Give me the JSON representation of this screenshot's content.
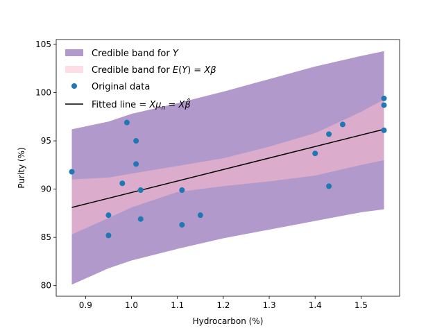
{
  "chart_data": {
    "type": "scatter",
    "xlabel": "Hydrocarbon (%)",
    "ylabel": "Purity (%)",
    "xlim": [
      0.836,
      1.584
    ],
    "ylim": [
      78.9,
      105.5
    ],
    "xticks": [
      0.9,
      1.0,
      1.1,
      1.2,
      1.3,
      1.4,
      1.5
    ],
    "xtick_labels": [
      "0.9",
      "1.0",
      "1.1",
      "1.2",
      "1.3",
      "1.4",
      "1.5"
    ],
    "yticks": [
      80,
      85,
      90,
      95,
      100,
      105
    ],
    "ytick_labels": [
      "80",
      "85",
      "90",
      "95",
      "100",
      "105"
    ],
    "grid": false,
    "legend_position": "top-left",
    "legend": [
      {
        "key": "band_y",
        "label": "Credible band for Y"
      },
      {
        "key": "band_mean",
        "label": "Credible band for E(Y) = Xβ"
      },
      {
        "key": "points",
        "label": "Original data"
      },
      {
        "key": "line",
        "label": "Fitted line = Xμn = Xβ̂"
      }
    ],
    "colors": {
      "band_y": "#b299cc",
      "band_mean": "#dbaccc",
      "points": "#1f77b4",
      "line": "#000000",
      "legend_band_mean_swatch": "#ffdde6"
    },
    "band_y": {
      "x": [
        0.87,
        0.95,
        1.0,
        1.1,
        1.2,
        1.3,
        1.4,
        1.5,
        1.55
      ],
      "lower": [
        80.1,
        81.8,
        82.6,
        83.8,
        84.9,
        85.8,
        86.7,
        87.6,
        87.9
      ],
      "upper": [
        96.2,
        97.0,
        97.8,
        98.9,
        100.1,
        101.4,
        102.7,
        103.8,
        104.3
      ]
    },
    "band_mean": {
      "x": [
        0.87,
        0.95,
        1.0,
        1.1,
        1.2,
        1.3,
        1.4,
        1.5,
        1.55
      ],
      "lower": [
        85.3,
        87.0,
        88.1,
        89.7,
        90.3,
        90.8,
        91.4,
        92.5,
        93.0
      ],
      "upper": [
        91.0,
        91.2,
        91.6,
        92.4,
        93.2,
        94.4,
        95.8,
        98.0,
        99.3
      ]
    },
    "fitted_line": {
      "x": [
        0.87,
        1.55
      ],
      "y": [
        88.1,
        96.2
      ]
    },
    "points": {
      "x": [
        0.87,
        0.95,
        0.95,
        0.98,
        0.99,
        1.01,
        1.01,
        1.02,
        1.02,
        1.11,
        1.11,
        1.15,
        1.4,
        1.43,
        1.43,
        1.46,
        1.55,
        1.55,
        1.55
      ],
      "y": [
        91.8,
        87.3,
        85.2,
        90.6,
        96.9,
        95.0,
        92.6,
        89.9,
        86.9,
        89.9,
        86.3,
        87.3,
        93.7,
        95.7,
        90.3,
        96.7,
        99.4,
        98.7,
        96.1
      ]
    }
  }
}
